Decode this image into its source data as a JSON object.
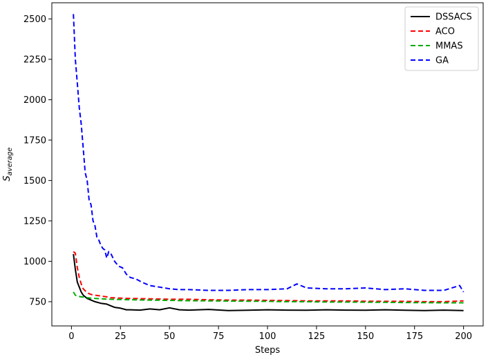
{
  "chart_data": {
    "type": "line",
    "title": "",
    "xlabel": "Steps",
    "ylabel": {
      "main": "S",
      "sub": "average"
    },
    "xlim": [
      -10,
      210
    ],
    "ylim": [
      600,
      2600
    ],
    "xticks": [
      0,
      25,
      50,
      75,
      100,
      125,
      150,
      175,
      200
    ],
    "yticks": [
      750,
      1000,
      1250,
      1500,
      1750,
      2000,
      2250,
      2500
    ],
    "grid": false,
    "legend": "top-right",
    "series": [
      {
        "name": "DSSACS",
        "color": "#000000",
        "dash": "solid",
        "x": [
          1,
          2,
          3,
          4,
          5,
          6,
          8,
          10,
          12,
          15,
          18,
          20,
          22,
          25,
          28,
          30,
          35,
          40,
          45,
          50,
          55,
          60,
          70,
          80,
          90,
          100,
          110,
          120,
          130,
          140,
          150,
          160,
          170,
          180,
          190,
          200
        ],
        "y": [
          1045,
          950,
          870,
          840,
          810,
          790,
          770,
          760,
          750,
          740,
          735,
          725,
          715,
          710,
          700,
          700,
          698,
          705,
          700,
          712,
          700,
          698,
          702,
          695,
          697,
          700,
          698,
          697,
          700,
          698,
          697,
          700,
          697,
          695,
          698,
          695
        ]
      },
      {
        "name": "ACO",
        "color": "#ff0000",
        "dash": "dashed",
        "x": [
          1,
          2,
          3,
          4,
          5,
          6,
          8,
          10,
          12,
          15,
          18,
          20,
          25,
          30,
          40,
          50,
          60,
          70,
          80,
          90,
          100,
          110,
          120,
          130,
          140,
          150,
          160,
          170,
          180,
          190,
          200
        ],
        "y": [
          1060,
          1050,
          960,
          900,
          860,
          830,
          805,
          795,
          790,
          785,
          780,
          775,
          772,
          770,
          768,
          765,
          765,
          762,
          760,
          760,
          758,
          757,
          755,
          755,
          755,
          753,
          752,
          752,
          750,
          750,
          755
        ]
      },
      {
        "name": "MMAS",
        "color": "#00aa00",
        "dash": "dashed",
        "x": [
          1,
          2,
          3,
          5,
          8,
          10,
          15,
          20,
          30,
          40,
          50,
          60,
          70,
          80,
          90,
          100,
          110,
          120,
          130,
          140,
          150,
          160,
          170,
          180,
          190,
          200
        ],
        "y": [
          810,
          790,
          785,
          780,
          775,
          772,
          768,
          765,
          762,
          760,
          758,
          756,
          755,
          754,
          753,
          752,
          750,
          750,
          748,
          748,
          747,
          746,
          745,
          744,
          743,
          743
        ]
      },
      {
        "name": "GA",
        "color": "#0000ff",
        "dash": "dashed",
        "x": [
          1,
          2,
          3,
          4,
          5,
          6,
          7,
          8,
          9,
          10,
          11,
          12,
          13,
          14,
          15,
          16,
          17,
          18,
          19,
          20,
          22,
          24,
          26,
          28,
          30,
          33,
          36,
          40,
          45,
          50,
          55,
          60,
          70,
          80,
          90,
          100,
          110,
          115,
          120,
          130,
          140,
          150,
          160,
          170,
          180,
          190,
          198,
          200
        ],
        "y": [
          2530,
          2250,
          2100,
          1950,
          1850,
          1700,
          1550,
          1500,
          1380,
          1350,
          1250,
          1220,
          1150,
          1130,
          1100,
          1080,
          1070,
          1020,
          1060,
          1050,
          1000,
          970,
          960,
          920,
          900,
          890,
          870,
          850,
          840,
          830,
          825,
          825,
          820,
          820,
          825,
          825,
          830,
          860,
          835,
          830,
          830,
          835,
          825,
          830,
          820,
          820,
          850,
          810
        ]
      }
    ]
  }
}
